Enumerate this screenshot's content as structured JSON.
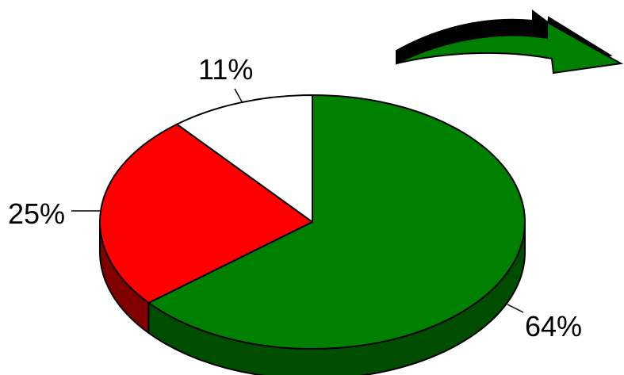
{
  "chart_data": {
    "type": "pie",
    "title": "",
    "slices": [
      {
        "label": "64%",
        "value": 64,
        "color": "#008000",
        "side_color": "#004d00"
      },
      {
        "label": "25%",
        "value": 25,
        "color": "#ff0000",
        "side_color": "#800000"
      },
      {
        "label": "11%",
        "value": 11,
        "color": "#ffffff",
        "side_color": "#cccccc"
      }
    ],
    "style": "3d",
    "start_angle_deg": -90,
    "direction": "clockwise"
  },
  "decoration": {
    "arrow_icon": "curved-arrow-right-icon",
    "arrow_color": "#008000",
    "arrow_shadow_color": "#000000"
  }
}
